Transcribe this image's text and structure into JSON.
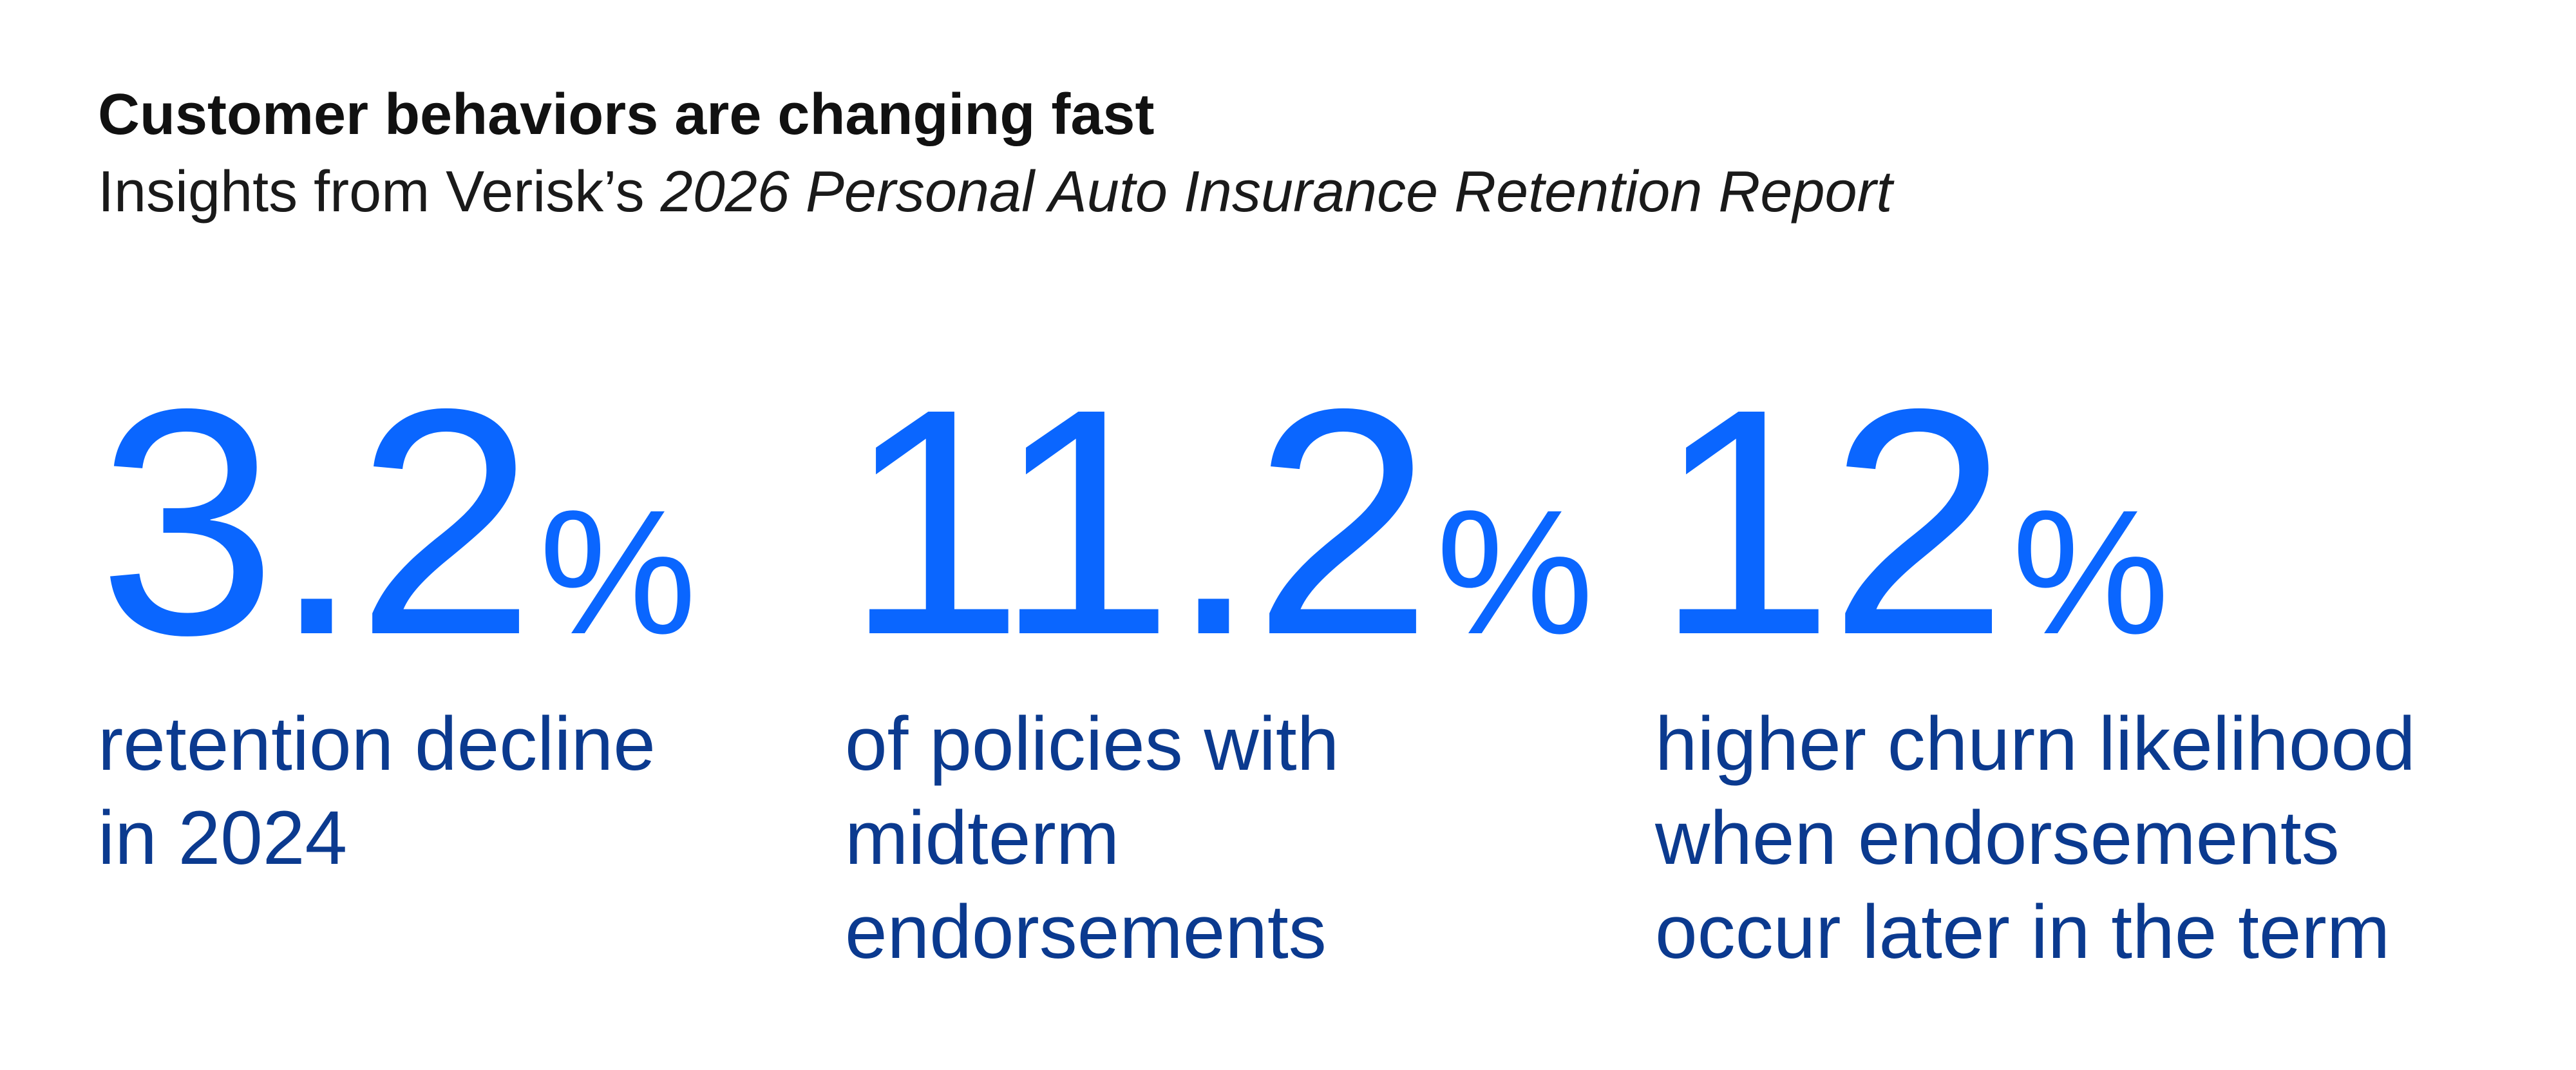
{
  "header": {
    "title": "Customer behaviors are changing fast",
    "subtitle_prefix": "Insights from Verisk’s ",
    "subtitle_report": "2026 Personal Auto Insurance Retention Report"
  },
  "stats": [
    {
      "value": "3.2",
      "unit": "%",
      "description_lines": [
        "retention decline",
        "in 2024"
      ]
    },
    {
      "value": "11.2",
      "unit": "%",
      "description_lines": [
        "of policies with",
        "midterm",
        "endorsements"
      ]
    },
    {
      "value": "12",
      "unit": "%",
      "description_lines": [
        "higher churn likelihood",
        "when endorsements",
        "occur later in the term"
      ]
    }
  ],
  "colors": {
    "figure": "#0a66ff",
    "description": "#0b3a8f",
    "title": "#111111",
    "background": "#ffffff"
  }
}
